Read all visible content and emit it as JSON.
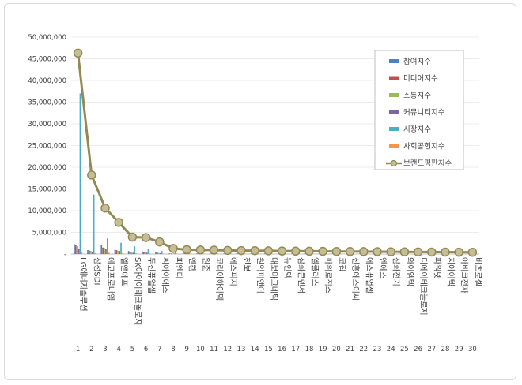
{
  "chart_data": {
    "type": "bar",
    "ylim": [
      0,
      50000000
    ],
    "yticks": [
      "-",
      "5,000,000",
      "10,000,000",
      "15,000,000",
      "20,000,000",
      "25,000,000",
      "30,000,000",
      "35,000,000",
      "40,000,000",
      "45,000,000",
      "50,000,000"
    ],
    "legend_position": "top-right",
    "categories": [
      "LG에너지솔루션",
      "삼성SDI",
      "에코프로비엠",
      "엘앤에프",
      "SK아이이테크놀로지",
      "두산퓨얼셀",
      "씨아이에스",
      "피엔티",
      "엔켐",
      "원준",
      "코리아하이텍",
      "에스피지",
      "천보",
      "원익피앤이",
      "대보마그네틱",
      "뉴인텍",
      "삼화콘덴서",
      "엘플러스",
      "파워로직스",
      "코칩",
      "신흥에스이씨",
      "에스퓨얼셀",
      "엔에스",
      "삼화전기",
      "와이엠텍",
      "디에이테크놀로지",
      "파워넷",
      "지아이텍",
      "아비코전자",
      "비츠로셀"
    ],
    "ranks": [
      "1",
      "2",
      "3",
      "4",
      "5",
      "6",
      "7",
      "8",
      "9",
      "10",
      "11",
      "12",
      "13",
      "14",
      "15",
      "16",
      "17",
      "18",
      "19",
      "20",
      "21",
      "22",
      "23",
      "24",
      "25",
      "26",
      "27",
      "28",
      "29",
      "30"
    ],
    "series": [
      {
        "name": "참여지수",
        "color": "#4f81bd",
        "values": [
          2300000,
          900000,
          2000000,
          1000000,
          700000,
          600000,
          400000,
          150000,
          90000,
          60000,
          60000,
          50000,
          40000,
          40000,
          40000,
          35000,
          30000,
          30000,
          30000,
          25000,
          25000,
          20000,
          20000,
          20000,
          15000,
          15000,
          15000,
          15000,
          10000,
          10000
        ]
      },
      {
        "name": "미디어지수",
        "color": "#c0504d",
        "values": [
          2000000,
          800000,
          1500000,
          900000,
          500000,
          500000,
          300000,
          120000,
          70000,
          50000,
          50000,
          40000,
          40000,
          30000,
          30000,
          30000,
          25000,
          25000,
          25000,
          20000,
          20000,
          20000,
          15000,
          15000,
          15000,
          10000,
          10000,
          10000,
          10000,
          10000
        ]
      },
      {
        "name": "소통지수",
        "color": "#9bbb59",
        "values": [
          1800000,
          700000,
          1400000,
          800000,
          400000,
          400000,
          250000,
          100000,
          60000,
          40000,
          40000,
          35000,
          30000,
          30000,
          25000,
          25000,
          20000,
          20000,
          20000,
          15000,
          15000,
          15000,
          15000,
          10000,
          10000,
          10000,
          10000,
          10000,
          10000,
          10000
        ]
      },
      {
        "name": "커뮤니티지수",
        "color": "#8064a2",
        "values": [
          1200000,
          500000,
          1100000,
          700000,
          300000,
          300000,
          200000,
          80000,
          50000,
          30000,
          30000,
          30000,
          25000,
          25000,
          20000,
          20000,
          15000,
          15000,
          15000,
          15000,
          10000,
          10000,
          10000,
          10000,
          10000,
          10000,
          10000,
          10000,
          10000,
          10000
        ]
      },
      {
        "name": "시장지수",
        "color": "#4bacc6",
        "values": [
          37000000,
          13700000,
          3600000,
          2600000,
          1800000,
          1200000,
          700000,
          400000,
          300000,
          250000,
          200000,
          180000,
          160000,
          150000,
          140000,
          130000,
          120000,
          110000,
          100000,
          90000,
          90000,
          80000,
          80000,
          70000,
          70000,
          60000,
          60000,
          50000,
          50000,
          50000
        ]
      },
      {
        "name": "사회공헌지수",
        "color": "#f79646",
        "values": [
          500000,
          200000,
          300000,
          200000,
          150000,
          100000,
          80000,
          40000,
          30000,
          20000,
          20000,
          20000,
          15000,
          15000,
          15000,
          10000,
          10000,
          10000,
          10000,
          10000,
          10000,
          10000,
          10000,
          10000,
          10000,
          10000,
          10000,
          10000,
          10000,
          10000
        ]
      }
    ],
    "line_series": {
      "name": "브랜드평판지수",
      "color": "#938953",
      "values": [
        46300000,
        18200000,
        10600000,
        7300000,
        3900000,
        3800000,
        2800000,
        1300000,
        1000000,
        950000,
        900000,
        850000,
        800000,
        780000,
        750000,
        700000,
        680000,
        650000,
        630000,
        600000,
        580000,
        560000,
        540000,
        520000,
        500000,
        480000,
        460000,
        450000,
        430000,
        420000
      ]
    }
  }
}
